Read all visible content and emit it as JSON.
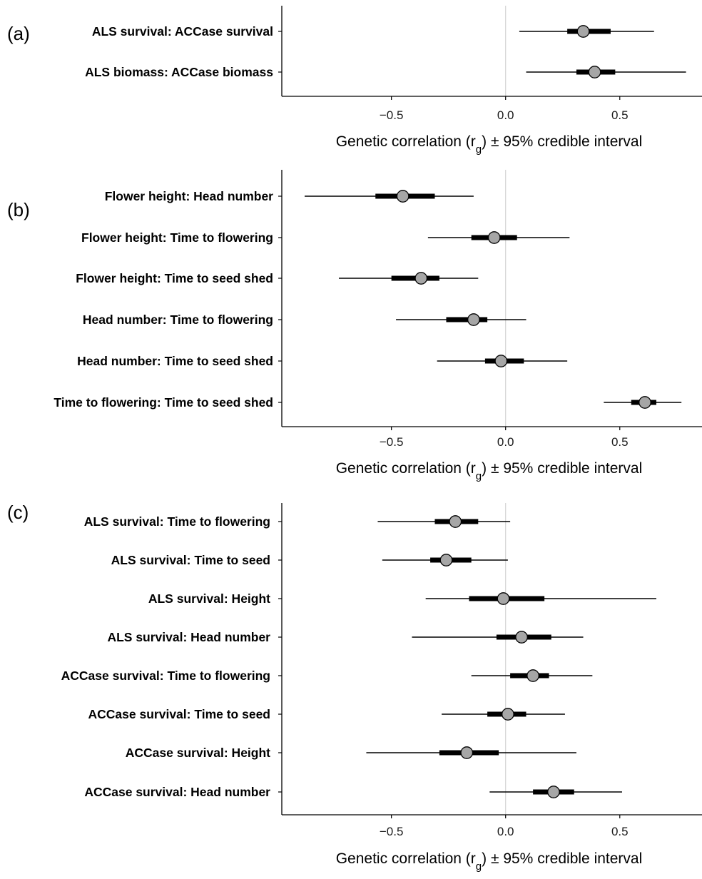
{
  "xlabel_prefix": "Genetic correlation (r",
  "xlabel_sub": "g",
  "xlabel_suffix": ") ± 95% credible interval",
  "chart_data": [
    {
      "panel": "(a)",
      "type": "forest",
      "xlim": [
        -0.98,
        0.86
      ],
      "xticks": [
        -0.5,
        0.0,
        0.5
      ],
      "xtick_labels": [
        "−0.5",
        "0.0",
        "0.5"
      ],
      "point_color": "#a6a6a6",
      "rows": [
        {
          "label": "ALS survival: ACCase survival",
          "estimate": 0.34,
          "inner": [
            0.27,
            0.46
          ],
          "outer": [
            0.06,
            0.65
          ]
        },
        {
          "label": "ALS biomass: ACCase biomass",
          "estimate": 0.39,
          "inner": [
            0.31,
            0.48
          ],
          "outer": [
            0.09,
            0.79
          ]
        }
      ]
    },
    {
      "panel": "(b)",
      "type": "forest",
      "xlim": [
        -0.98,
        0.86
      ],
      "xticks": [
        -0.5,
        0.0,
        0.5
      ],
      "xtick_labels": [
        "−0.5",
        "0.0",
        "0.5"
      ],
      "point_color": "#a6a6a6",
      "rows": [
        {
          "label": "Flower height: Head number",
          "estimate": -0.45,
          "inner": [
            -0.57,
            -0.31
          ],
          "outer": [
            -0.88,
            -0.14
          ]
        },
        {
          "label": "Flower height: Time to flowering",
          "estimate": -0.05,
          "inner": [
            -0.15,
            0.05
          ],
          "outer": [
            -0.34,
            0.28
          ]
        },
        {
          "label": "Flower height: Time to seed shed",
          "estimate": -0.37,
          "inner": [
            -0.5,
            -0.29
          ],
          "outer": [
            -0.73,
            -0.12
          ]
        },
        {
          "label": "Head number: Time to flowering",
          "estimate": -0.14,
          "inner": [
            -0.26,
            -0.08
          ],
          "outer": [
            -0.48,
            0.09
          ]
        },
        {
          "label": "Head number: Time to seed shed",
          "estimate": -0.02,
          "inner": [
            -0.09,
            0.08
          ],
          "outer": [
            -0.3,
            0.27
          ]
        },
        {
          "label": "Time to flowering: Time to seed shed",
          "estimate": 0.61,
          "inner": [
            0.55,
            0.66
          ],
          "outer": [
            0.43,
            0.77
          ]
        }
      ]
    },
    {
      "panel": "(c)",
      "type": "forest",
      "xlim": [
        -0.98,
        0.86
      ],
      "xticks": [
        -0.5,
        0.0,
        0.5
      ],
      "xtick_labels": [
        "−0.5",
        "0.0",
        "0.5"
      ],
      "point_color": "#a6a6a6",
      "rows": [
        {
          "label": "ALS survival: Time to flowering",
          "estimate": -0.22,
          "inner": [
            -0.31,
            -0.12
          ],
          "outer": [
            -0.56,
            0.02
          ]
        },
        {
          "label": "ALS survival: Time to seed",
          "estimate": -0.26,
          "inner": [
            -0.33,
            -0.15
          ],
          "outer": [
            -0.54,
            0.01
          ]
        },
        {
          "label": "ALS survival: Height",
          "estimate": -0.01,
          "inner": [
            -0.16,
            0.17
          ],
          "outer": [
            -0.35,
            0.66
          ]
        },
        {
          "label": "ALS survival: Head number",
          "estimate": 0.07,
          "inner": [
            -0.04,
            0.2
          ],
          "outer": [
            -0.41,
            0.34
          ]
        },
        {
          "label": "ACCase survival: Time to flowering",
          "estimate": 0.12,
          "inner": [
            0.02,
            0.19
          ],
          "outer": [
            -0.15,
            0.38
          ]
        },
        {
          "label": "ACCase survival: Time to seed",
          "estimate": 0.01,
          "inner": [
            -0.08,
            0.09
          ],
          "outer": [
            -0.28,
            0.26
          ]
        },
        {
          "label": "ACCase survival: Height",
          "estimate": -0.17,
          "inner": [
            -0.29,
            -0.03
          ],
          "outer": [
            -0.61,
            0.31
          ]
        },
        {
          "label": "ACCase survival: Head number",
          "estimate": 0.21,
          "inner": [
            0.12,
            0.3
          ],
          "outer": [
            -0.07,
            0.51
          ]
        }
      ]
    }
  ]
}
